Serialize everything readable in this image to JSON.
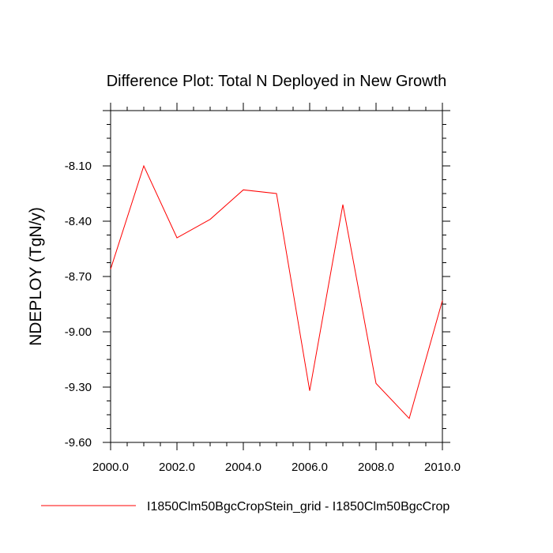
{
  "chart_data": {
    "type": "line",
    "title": "Difference Plot: Total N Deployed in New Growth",
    "xlabel": "",
    "ylabel": "NDEPLOY  (TgN/y)",
    "xlim": [
      2000,
      2010
    ],
    "ylim": [
      -9.6,
      -7.8
    ],
    "xticks": [
      2000,
      2002,
      2004,
      2006,
      2008,
      2010
    ],
    "xtick_labels": [
      "2000.0",
      "2002.0",
      "2004.0",
      "2006.0",
      "2008.0",
      "2010.0"
    ],
    "yticks": [
      -8.1,
      -8.4,
      -8.7,
      -9.0,
      -9.3,
      -9.6
    ],
    "ytick_labels": [
      "-8.10",
      "-8.40",
      "-8.70",
      "-9.00",
      "-9.30",
      "-9.60"
    ],
    "grid": false,
    "legend_position": "bottom",
    "series": [
      {
        "name": "I1850Clm50BgcCropStein_grid - I1850Clm50BgcCrop",
        "color": "#ff0000",
        "x": [
          2000,
          2001,
          2002,
          2003,
          2004,
          2005,
          2006,
          2007,
          2008,
          2009,
          2010
        ],
        "y": [
          -8.66,
          -8.1,
          -8.49,
          -8.39,
          -8.23,
          -8.25,
          -9.32,
          -8.31,
          -9.28,
          -9.47,
          -8.83
        ]
      }
    ]
  }
}
